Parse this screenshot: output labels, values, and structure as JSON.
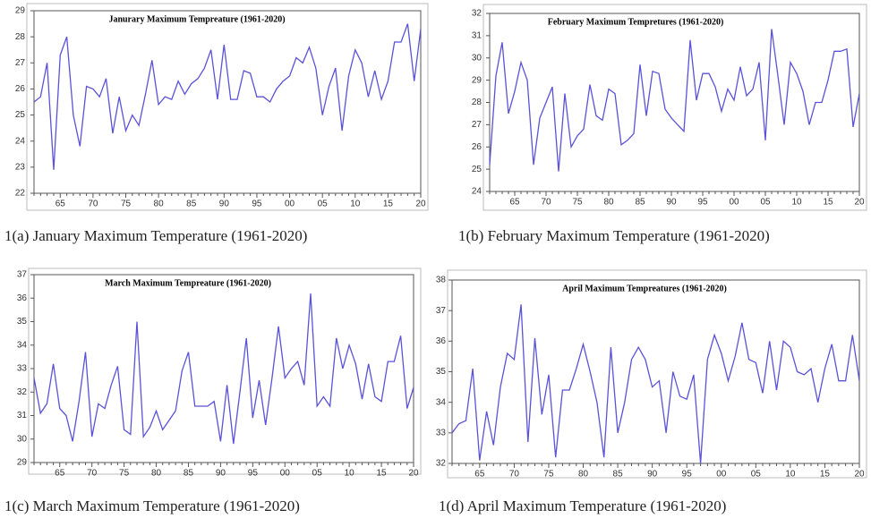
{
  "chart_data": [
    {
      "type": "line",
      "title": "Janurary Maximum Tempreature (1961-2020)",
      "caption": "1(a) January Maximum Temperature (1961-2020)",
      "categories": [
        null,
        null,
        null,
        null,
        "65",
        null,
        null,
        null,
        null,
        "70",
        null,
        null,
        null,
        null,
        "75",
        null,
        null,
        null,
        null,
        "80",
        null,
        null,
        null,
        null,
        "85",
        null,
        null,
        null,
        null,
        "90",
        null,
        null,
        null,
        null,
        "95",
        null,
        null,
        null,
        null,
        "00",
        null,
        null,
        null,
        null,
        "05",
        null,
        null,
        null,
        null,
        "10",
        null,
        null,
        null,
        null,
        "15",
        null,
        null,
        null,
        null,
        "20"
      ],
      "series": [
        {
          "color": "#5a52d8",
          "values": [
            25.5,
            25.7,
            27.0,
            22.9,
            27.3,
            28.0,
            25.0,
            23.8,
            26.1,
            26.0,
            25.7,
            26.4,
            24.3,
            25.7,
            24.4,
            25.0,
            24.6,
            25.8,
            27.1,
            25.4,
            25.7,
            25.6,
            26.3,
            25.8,
            26.2,
            26.4,
            26.8,
            27.5,
            25.6,
            27.7,
            25.6,
            25.6,
            26.7,
            26.6,
            25.7,
            25.7,
            25.5,
            26.0,
            26.3,
            26.5,
            27.2,
            27.0,
            27.6,
            26.8,
            25.0,
            26.1,
            26.8,
            24.4,
            26.5,
            27.5,
            27.0,
            25.7,
            26.7,
            25.6,
            26.3,
            27.8,
            27.8,
            28.5,
            26.3,
            28.3
          ]
        }
      ],
      "ylim": [
        22,
        29
      ],
      "yticks": [
        22,
        23,
        24,
        25,
        26,
        27,
        28,
        29
      ]
    },
    {
      "type": "line",
      "title": "February Maximum Tempretures (1961-2020)",
      "caption": "1(b) February Maximum Temperature (1961-2020)",
      "categories": [
        null,
        null,
        null,
        null,
        "65",
        null,
        null,
        null,
        null,
        "70",
        null,
        null,
        null,
        null,
        "75",
        null,
        null,
        null,
        null,
        "80",
        null,
        null,
        null,
        null,
        "85",
        null,
        null,
        null,
        null,
        "90",
        null,
        null,
        null,
        null,
        "95",
        null,
        null,
        null,
        null,
        "00",
        null,
        null,
        null,
        null,
        "05",
        null,
        null,
        null,
        null,
        "10",
        null,
        null,
        null,
        null,
        "15",
        null,
        null,
        null,
        null,
        "20"
      ],
      "series": [
        {
          "color": "#5a52d8",
          "values": [
            25.2,
            29.2,
            30.7,
            27.5,
            28.5,
            29.8,
            29.0,
            25.2,
            27.3,
            28.0,
            28.7,
            24.9,
            28.4,
            26.0,
            26.5,
            26.8,
            28.8,
            27.4,
            27.2,
            28.6,
            28.4,
            26.1,
            26.3,
            26.6,
            29.7,
            27.4,
            29.4,
            29.3,
            27.7,
            27.3,
            27.0,
            26.7,
            30.8,
            28.1,
            29.3,
            29.3,
            28.7,
            27.6,
            28.6,
            28.1,
            29.6,
            28.3,
            28.6,
            29.8,
            26.3,
            31.3,
            29.2,
            27.0,
            29.8,
            29.3,
            28.5,
            27.0,
            28.0,
            28.0,
            29.0,
            30.3,
            30.3,
            30.4,
            26.9,
            28.4
          ]
        }
      ],
      "ylim": [
        24,
        32
      ],
      "yticks": [
        24,
        25,
        26,
        27,
        28,
        29,
        30,
        31,
        32
      ]
    },
    {
      "type": "line",
      "title": "March Maximum Tempreature (1961-2020)",
      "caption": "1(c) March Maximum Temperature (1961-2020)",
      "categories": [
        null,
        null,
        null,
        null,
        "65",
        null,
        null,
        null,
        null,
        "70",
        null,
        null,
        null,
        null,
        "75",
        null,
        null,
        null,
        null,
        "80",
        null,
        null,
        null,
        null,
        "85",
        null,
        null,
        null,
        null,
        "90",
        null,
        null,
        null,
        null,
        "95",
        null,
        null,
        null,
        null,
        "00",
        null,
        null,
        null,
        null,
        "05",
        null,
        null,
        null,
        null,
        "10",
        null,
        null,
        null,
        null,
        "15",
        null,
        null,
        null,
        null,
        "20"
      ],
      "series": [
        {
          "color": "#5a52d8",
          "values": [
            32.6,
            31.1,
            31.5,
            33.2,
            31.3,
            31.0,
            29.9,
            31.6,
            33.7,
            30.1,
            31.5,
            31.3,
            32.3,
            33.1,
            30.4,
            30.2,
            35.0,
            30.1,
            30.5,
            31.2,
            30.4,
            30.8,
            31.2,
            32.9,
            33.7,
            31.4,
            31.4,
            31.4,
            31.6,
            29.9,
            32.3,
            29.8,
            32.0,
            34.3,
            30.9,
            32.5,
            30.6,
            32.6,
            34.8,
            32.6,
            33.0,
            33.3,
            32.3,
            36.2,
            31.4,
            31.8,
            31.4,
            34.3,
            33.0,
            34.0,
            33.2,
            31.7,
            33.2,
            31.8,
            31.6,
            33.3,
            33.3,
            34.4,
            31.3,
            32.2
          ]
        }
      ],
      "ylim": [
        29,
        37
      ],
      "yticks": [
        29,
        30,
        31,
        32,
        33,
        34,
        35,
        36,
        37
      ]
    },
    {
      "type": "line",
      "title": "April Maximum Tempreatures (1961-2020)",
      "caption": "1(d) April Maximum Temperature (1961-2020)",
      "categories": [
        null,
        null,
        null,
        null,
        "65",
        null,
        null,
        null,
        null,
        "70",
        null,
        null,
        null,
        null,
        "75",
        null,
        null,
        null,
        null,
        "80",
        null,
        null,
        null,
        null,
        "85",
        null,
        null,
        null,
        null,
        "90",
        null,
        null,
        null,
        null,
        "95",
        null,
        null,
        null,
        null,
        "00",
        null,
        null,
        null,
        null,
        "05",
        null,
        null,
        null,
        null,
        "10",
        null,
        null,
        null,
        null,
        "15",
        null,
        null,
        null,
        null,
        "20"
      ],
      "series": [
        {
          "color": "#5a52d8",
          "values": [
            33.0,
            33.3,
            33.4,
            35.1,
            32.1,
            33.7,
            32.6,
            34.5,
            35.6,
            35.4,
            37.2,
            32.7,
            36.1,
            33.6,
            34.9,
            32.2,
            34.4,
            34.4,
            35.1,
            35.9,
            35.0,
            34.0,
            32.2,
            35.8,
            33.0,
            34.0,
            35.4,
            35.8,
            35.4,
            34.5,
            34.7,
            33.0,
            35.0,
            34.2,
            34.1,
            34.9,
            32.0,
            35.4,
            36.2,
            35.6,
            34.7,
            35.5,
            36.6,
            35.4,
            35.3,
            34.3,
            36.0,
            34.4,
            36.0,
            35.8,
            35.0,
            34.9,
            35.1,
            34.0,
            35.1,
            35.9,
            34.7,
            34.7,
            36.2,
            34.7
          ]
        }
      ],
      "ylim": [
        32,
        38
      ],
      "yticks": [
        32,
        33,
        34,
        35,
        36,
        37,
        38
      ]
    }
  ]
}
